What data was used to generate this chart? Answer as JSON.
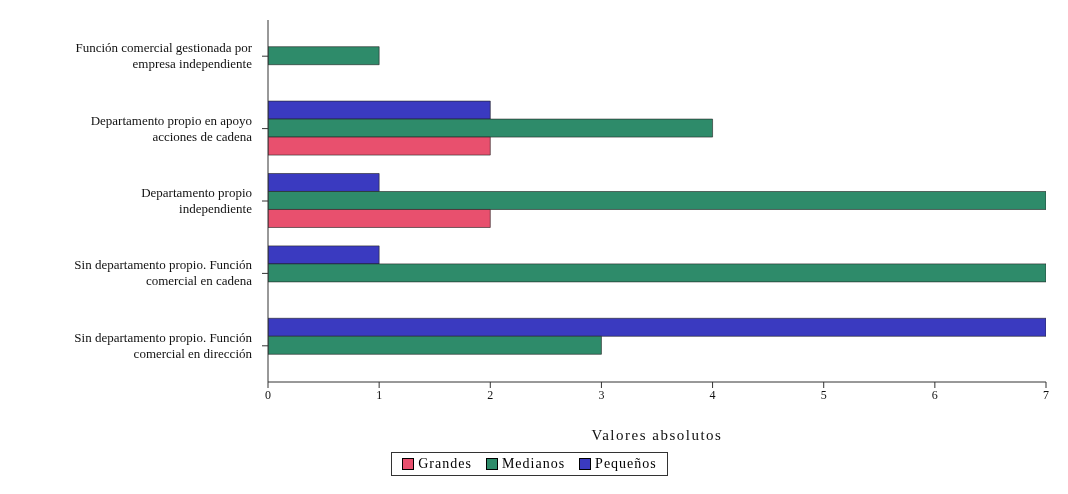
{
  "chart_data": {
    "type": "bar",
    "orientation": "horizontal",
    "xlabel": "Valores absolutos",
    "categories": [
      "Función comercial gestionada por empresa independiente",
      "Departamento propio en apoyo acciones de cadena",
      "Departamento propio independiente",
      "Sin departamento propio. Función comercial en cadena",
      "Sin departamento propio. Función comercial en dirección"
    ],
    "series": [
      {
        "name": "Grandes",
        "color": "#e8506e",
        "values": [
          0,
          2,
          2,
          0,
          0
        ]
      },
      {
        "name": "Medianos",
        "color": "#2e8b6a",
        "values": [
          1,
          4,
          7,
          7,
          3
        ]
      },
      {
        "name": "Pequeños",
        "color": "#3a3ac0",
        "values": [
          0,
          2,
          1,
          1,
          7
        ]
      }
    ],
    "xlim": [
      0,
      7
    ],
    "xticks": [
      0,
      1,
      2,
      3,
      4,
      5,
      6,
      7
    ],
    "grid": false,
    "legend": "bottom"
  }
}
